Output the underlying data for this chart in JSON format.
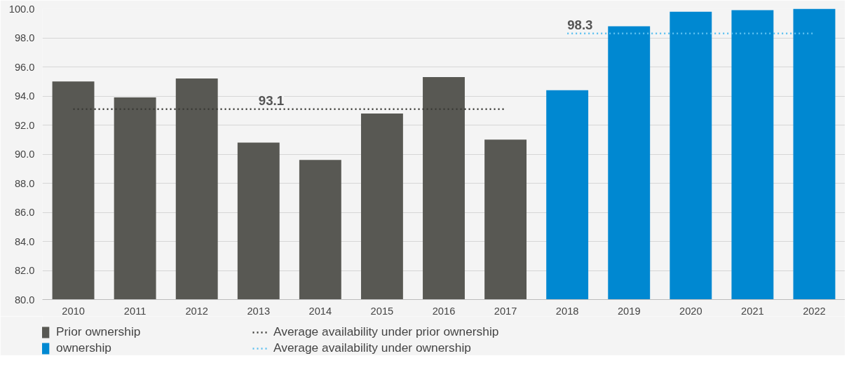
{
  "chart_data": {
    "type": "bar",
    "categories": [
      "2010",
      "2011",
      "2012",
      "2013",
      "2014",
      "2015",
      "2016",
      "2017",
      "2018",
      "2019",
      "2020",
      "2021",
      "2022"
    ],
    "series": [
      {
        "name": "Prior ownership",
        "color": "#585853",
        "values": [
          95.0,
          93.9,
          95.2,
          90.8,
          89.6,
          92.8,
          95.3,
          91.0,
          null,
          null,
          null,
          null,
          null
        ]
      },
      {
        "name": "ownership",
        "color": "#0088d1",
        "values": [
          null,
          null,
          null,
          null,
          null,
          null,
          null,
          null,
          94.4,
          98.8,
          99.8,
          99.9,
          100.0
        ]
      },
      {
        "name": "Average availability under prior ownership",
        "type": "line",
        "line_style": "dotted",
        "color": "#3a3a36",
        "values": [
          93.1,
          93.1,
          93.1,
          93.1,
          93.1,
          93.1,
          93.1,
          93.1,
          null,
          null,
          null,
          null,
          null
        ]
      },
      {
        "name": "Average availability under ownership",
        "type": "line",
        "line_style": "dotted",
        "color": "#5cc0f0",
        "values": [
          null,
          null,
          null,
          null,
          null,
          null,
          null,
          null,
          98.3,
          98.3,
          98.3,
          98.3,
          98.3
        ]
      }
    ],
    "annotations": [
      {
        "text": "93.1",
        "x": "2013",
        "y": 93.1
      },
      {
        "text": "98.3",
        "x": "2018",
        "y": 98.3
      }
    ],
    "ylim": [
      80,
      100
    ],
    "yticks": [
      {
        "value": 80,
        "label": "80.0"
      },
      {
        "value": 82,
        "label": "82.0"
      },
      {
        "value": 84,
        "label": "84.0"
      },
      {
        "value": 86,
        "label": "86.0"
      },
      {
        "value": 88,
        "label": "88.0"
      },
      {
        "value": 90,
        "label": "90.0"
      },
      {
        "value": 92,
        "label": "92.0"
      },
      {
        "value": 94,
        "label": "94.0"
      },
      {
        "value": 96,
        "label": "96.0"
      },
      {
        "value": 98,
        "label": "98.0"
      },
      {
        "value": 100,
        "label": "100.0"
      }
    ],
    "grid": "y",
    "legend": "bottom"
  }
}
